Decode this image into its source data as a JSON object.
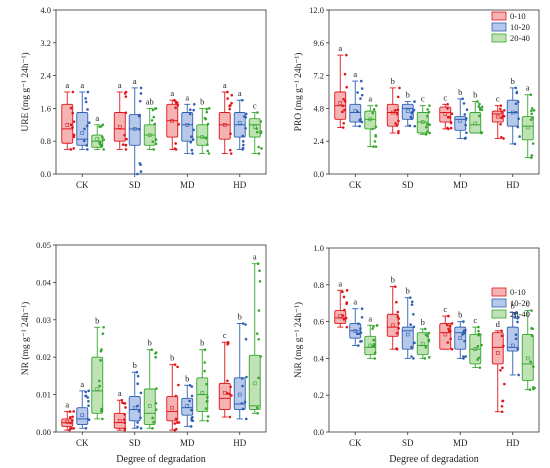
{
  "figure": {
    "xlabel": "Degree of degradation",
    "legend_labels": [
      "0-10",
      "10-20",
      "20-40"
    ],
    "colors": {
      "fill": [
        "#f6b3b3",
        "#b7c9ea",
        "#bfe3b5"
      ],
      "stroke": [
        "#e0161b",
        "#2f5fb3",
        "#36a62e"
      ]
    }
  },
  "chart_data": [
    {
      "type": "box",
      "panel": "top-left",
      "ylabel": "URE (mg g⁻¹ 24h⁻¹)",
      "xlabel": "",
      "categories": [
        "CK",
        "SD",
        "MD",
        "HD"
      ],
      "ylim": [
        0,
        4.0
      ],
      "yticks": [
        "0.0",
        "0.8",
        "1.6",
        "2.4",
        "3.2",
        "4.0"
      ],
      "legend": false,
      "series": [
        {
          "name": "0-10",
          "boxes": [
            {
              "min": 0.6,
              "q1": 0.75,
              "median": 1.1,
              "q3": 1.7,
              "max": 2.0,
              "mean": 1.2,
              "letter": "a"
            },
            {
              "min": 0.6,
              "q1": 0.8,
              "median": 1.1,
              "q3": 1.5,
              "max": 2.0,
              "mean": 1.15,
              "letter": "a"
            },
            {
              "min": 0.6,
              "q1": 0.9,
              "median": 1.3,
              "q3": 1.7,
              "max": 1.8,
              "mean": 1.3,
              "letter": "a"
            },
            {
              "min": 0.5,
              "q1": 0.85,
              "median": 1.2,
              "q3": 1.5,
              "max": 2.0,
              "mean": 1.2,
              "letter": "a"
            }
          ]
        },
        {
          "name": "10-20",
          "boxes": [
            {
              "min": 0.6,
              "q1": 0.7,
              "median": 0.85,
              "q3": 1.5,
              "max": 2.0,
              "mean": 1.0,
              "letter": "a"
            },
            {
              "min": 0.0,
              "q1": 0.7,
              "median": 1.1,
              "q3": 1.45,
              "max": 2.1,
              "mean": 1.1,
              "letter": "a"
            },
            {
              "min": 0.5,
              "q1": 0.8,
              "median": 1.2,
              "q3": 1.5,
              "max": 1.7,
              "mean": 1.2,
              "letter": "a"
            },
            {
              "min": 0.6,
              "q1": 0.9,
              "median": 1.2,
              "q3": 1.5,
              "max": 1.8,
              "mean": 1.25,
              "letter": "a"
            }
          ]
        },
        {
          "name": "20-40",
          "boxes": [
            {
              "min": 0.6,
              "q1": 0.65,
              "median": 0.8,
              "q3": 0.95,
              "max": 1.2,
              "mean": 0.85,
              "letter": "a"
            },
            {
              "min": 0.6,
              "q1": 0.7,
              "median": 0.95,
              "q3": 1.2,
              "max": 1.6,
              "mean": 0.95,
              "letter": "ab"
            },
            {
              "min": 0.5,
              "q1": 0.7,
              "median": 0.9,
              "q3": 1.2,
              "max": 1.6,
              "mean": 0.9,
              "letter": "b"
            },
            {
              "min": 0.5,
              "q1": 0.9,
              "median": 1.2,
              "q3": 1.35,
              "max": 1.5,
              "mean": 1.15,
              "letter": "c"
            }
          ]
        }
      ]
    },
    {
      "type": "box",
      "panel": "top-right",
      "ylabel": "PRO (mg g⁻¹ 24h⁻¹)",
      "xlabel": "",
      "categories": [
        "CK",
        "SD",
        "MD",
        "HD"
      ],
      "ylim": [
        0,
        12.0
      ],
      "yticks": [
        "0.0",
        "2.4",
        "4.8",
        "7.2",
        "9.6",
        "12.0"
      ],
      "legend": true,
      "legend_position": "top-right",
      "series": [
        {
          "name": "0-10",
          "boxes": [
            {
              "min": 3.4,
              "q1": 4.0,
              "median": 5.0,
              "q3": 6.0,
              "max": 8.7,
              "mean": 5.2,
              "letter": "a"
            },
            {
              "min": 3.0,
              "q1": 3.5,
              "median": 4.5,
              "q3": 5.1,
              "max": 6.3,
              "mean": 4.5,
              "letter": "b"
            },
            {
              "min": 3.3,
              "q1": 3.8,
              "median": 4.5,
              "q3": 4.9,
              "max": 5.1,
              "mean": 4.4,
              "letter": "c"
            },
            {
              "min": 2.6,
              "q1": 3.8,
              "median": 4.4,
              "q3": 4.6,
              "max": 5.0,
              "mean": 4.2,
              "letter": "c"
            }
          ]
        },
        {
          "name": "10-20",
          "boxes": [
            {
              "min": 3.5,
              "q1": 3.8,
              "median": 4.5,
              "q3": 5.1,
              "max": 6.8,
              "mean": 4.6,
              "letter": "a"
            },
            {
              "min": 3.5,
              "q1": 4.0,
              "median": 4.8,
              "q3": 5.1,
              "max": 5.3,
              "mean": 4.6,
              "letter": "b"
            },
            {
              "min": 2.6,
              "q1": 3.2,
              "median": 4.0,
              "q3": 4.2,
              "max": 5.5,
              "mean": 3.9,
              "letter": "b"
            },
            {
              "min": 2.2,
              "q1": 3.5,
              "median": 4.5,
              "q3": 5.4,
              "max": 6.3,
              "mean": 4.5,
              "letter": "b"
            }
          ]
        },
        {
          "name": "20-40",
          "boxes": [
            {
              "min": 2.0,
              "q1": 3.3,
              "median": 4.0,
              "q3": 4.6,
              "max": 5.0,
              "mean": 4.0,
              "letter": "a"
            },
            {
              "min": 2.9,
              "q1": 3.0,
              "median": 3.8,
              "q3": 4.5,
              "max": 5.0,
              "mean": 3.8,
              "letter": "c"
            },
            {
              "min": 3.0,
              "q1": 3.0,
              "median": 3.6,
              "q3": 4.5,
              "max": 5.3,
              "mean": 3.7,
              "letter": "b"
            },
            {
              "min": 1.2,
              "q1": 2.5,
              "median": 3.5,
              "q3": 4.2,
              "max": 5.8,
              "mean": 3.4,
              "letter": "a"
            }
          ]
        }
      ]
    },
    {
      "type": "box",
      "panel": "bottom-left",
      "ylabel": "NR (mg g⁻¹ 24h⁻¹)",
      "xlabel": "Degree of degradation",
      "categories": [
        "CK",
        "SD",
        "MD",
        "HD"
      ],
      "ylim": [
        0,
        0.05
      ],
      "yticks": [
        "0.00",
        "0.01",
        "0.02",
        "0.03",
        "0.04",
        "0.05"
      ],
      "legend": false,
      "series": [
        {
          "name": "0-10",
          "boxes": [
            {
              "min": 0.0005,
              "q1": 0.0015,
              "median": 0.0025,
              "q3": 0.0035,
              "max": 0.0055,
              "mean": 0.0027,
              "letter": "a"
            },
            {
              "min": 0.0005,
              "q1": 0.001,
              "median": 0.0025,
              "q3": 0.005,
              "max": 0.0085,
              "mean": 0.003,
              "letter": "a"
            },
            {
              "min": 0.0005,
              "q1": 0.003,
              "median": 0.0055,
              "q3": 0.0095,
              "max": 0.018,
              "mean": 0.0065,
              "letter": "b"
            },
            {
              "min": 0.004,
              "q1": 0.006,
              "median": 0.009,
              "q3": 0.013,
              "max": 0.024,
              "mean": 0.0105,
              "letter": "c"
            }
          ]
        },
        {
          "name": "10-20",
          "boxes": [
            {
              "min": 0.001,
              "q1": 0.002,
              "median": 0.0035,
              "q3": 0.0065,
              "max": 0.011,
              "mean": 0.0045,
              "letter": "a"
            },
            {
              "min": 0.001,
              "q1": 0.003,
              "median": 0.006,
              "q3": 0.0095,
              "max": 0.016,
              "mean": 0.0065,
              "letter": "b"
            },
            {
              "min": 0.0015,
              "q1": 0.0045,
              "median": 0.0065,
              "q3": 0.009,
              "max": 0.0125,
              "mean": 0.007,
              "letter": "b"
            },
            {
              "min": 0.0035,
              "q1": 0.006,
              "median": 0.0075,
              "q3": 0.0145,
              "max": 0.029,
              "mean": 0.01,
              "letter": "b"
            }
          ]
        },
        {
          "name": "20-40",
          "boxes": [
            {
              "min": 0.0035,
              "q1": 0.005,
              "median": 0.011,
              "q3": 0.02,
              "max": 0.028,
              "mean": 0.0115,
              "letter": "b"
            },
            {
              "min": 0.001,
              "q1": 0.002,
              "median": 0.005,
              "q3": 0.0115,
              "max": 0.022,
              "mean": 0.007,
              "letter": "b"
            },
            {
              "min": 0.003,
              "q1": 0.0055,
              "median": 0.01,
              "q3": 0.0145,
              "max": 0.022,
              "mean": 0.0105,
              "letter": "b"
            },
            {
              "min": 0.005,
              "q1": 0.006,
              "median": 0.007,
              "q3": 0.0205,
              "max": 0.045,
              "mean": 0.013,
              "letter": "a"
            }
          ]
        }
      ]
    },
    {
      "type": "box",
      "panel": "bottom-right",
      "ylabel": "NiR (mg g⁻¹ 24h⁻¹)",
      "xlabel": "Degree of degradation",
      "categories": [
        "CK",
        "SD",
        "MD",
        "HD"
      ],
      "ylim": [
        0,
        1.0
      ],
      "yticks": [
        "0.0",
        "0.2",
        "0.4",
        "0.6",
        "0.8",
        "1.0"
      ],
      "legend": true,
      "legend_position": "top-right",
      "series": [
        {
          "name": "0-10",
          "boxes": [
            {
              "min": 0.57,
              "q1": 0.59,
              "median": 0.62,
              "q3": 0.66,
              "max": 0.77,
              "mean": 0.63,
              "letter": "a"
            },
            {
              "min": 0.45,
              "q1": 0.52,
              "median": 0.57,
              "q3": 0.64,
              "max": 0.79,
              "mean": 0.58,
              "letter": "b"
            },
            {
              "min": 0.45,
              "q1": 0.45,
              "median": 0.54,
              "q3": 0.59,
              "max": 0.63,
              "mean": 0.53,
              "letter": "c"
            },
            {
              "min": 0.11,
              "q1": 0.37,
              "median": 0.46,
              "q3": 0.54,
              "max": 0.55,
              "mean": 0.43,
              "letter": "d"
            }
          ]
        },
        {
          "name": "10-20",
          "boxes": [
            {
              "min": 0.47,
              "q1": 0.51,
              "median": 0.55,
              "q3": 0.59,
              "max": 0.67,
              "mean": 0.55,
              "letter": "a"
            },
            {
              "min": 0.4,
              "q1": 0.45,
              "median": 0.55,
              "q3": 0.57,
              "max": 0.73,
              "mean": 0.53,
              "letter": "b"
            },
            {
              "min": 0.4,
              "q1": 0.45,
              "median": 0.54,
              "q3": 0.57,
              "max": 0.6,
              "mean": 0.51,
              "letter": "b"
            },
            {
              "min": 0.31,
              "q1": 0.44,
              "median": 0.46,
              "q3": 0.57,
              "max": 0.65,
              "mean": 0.47,
              "letter": "b"
            }
          ]
        },
        {
          "name": "20-40",
          "boxes": [
            {
              "min": 0.4,
              "q1": 0.42,
              "median": 0.46,
              "q3": 0.52,
              "max": 0.58,
              "mean": 0.47,
              "letter": "a"
            },
            {
              "min": 0.4,
              "q1": 0.42,
              "median": 0.47,
              "q3": 0.54,
              "max": 0.56,
              "mean": 0.48,
              "letter": "b"
            },
            {
              "min": 0.35,
              "q1": 0.37,
              "median": 0.45,
              "q3": 0.53,
              "max": 0.57,
              "mean": 0.45,
              "letter": "c"
            },
            {
              "min": 0.23,
              "q1": 0.28,
              "median": 0.37,
              "q3": 0.53,
              "max": 0.66,
              "mean": 0.4,
              "letter": "c"
            }
          ]
        }
      ]
    }
  ]
}
